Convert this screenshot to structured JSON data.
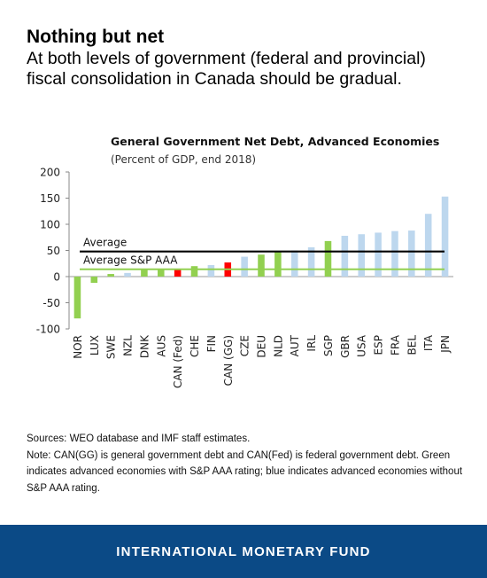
{
  "headline": {
    "title": "Nothing but net",
    "subtitle": "At both levels of government (federal and provincial) fiscal consolidation in Canada should be gradual."
  },
  "chart_data": {
    "type": "bar",
    "title": "General Government Net Debt, Advanced Economies",
    "subtitle": "(Percent of GDP, end 2018)",
    "categories": [
      "NOR",
      "LUX",
      "SWE",
      "NZL",
      "DNK",
      "AUS",
      "CAN (Fed)",
      "CHE",
      "FIN",
      "CAN (GG)",
      "CZE",
      "DEU",
      "NLD",
      "AUT",
      "IRL",
      "SGP",
      "GBR",
      "USA",
      "ESP",
      "FRA",
      "BEL",
      "ITA",
      "JPN"
    ],
    "values": [
      -80,
      -12,
      5,
      7,
      15,
      15,
      14,
      20,
      22,
      27,
      38,
      42,
      47,
      50,
      56,
      68,
      78,
      81,
      84,
      87,
      88,
      120,
      153
    ],
    "rating": [
      "aaa",
      "aaa",
      "aaa",
      "non",
      "aaa",
      "aaa",
      "can",
      "aaa",
      "non",
      "can",
      "non",
      "aaa",
      "aaa",
      "non",
      "non",
      "aaa",
      "non",
      "non",
      "non",
      "non",
      "non",
      "non",
      "non"
    ],
    "colors": {
      "aaa": "#92d050",
      "non": "#bdd7ee",
      "can": "#ff0000"
    },
    "ylim": [
      -100,
      200
    ],
    "yticks": [
      -100,
      -50,
      0,
      50,
      100,
      150,
      200
    ],
    "reference_lines": [
      {
        "label": "Average",
        "value": 48,
        "color": "#000000"
      },
      {
        "label": "Average S&P AAA",
        "value": 14,
        "color": "#92d050"
      }
    ],
    "grid": false
  },
  "notes": {
    "sources": "Sources: WEO database and IMF staff estimates.",
    "note": "Note: CAN(GG) is general government debt and CAN(Fed) is federal government debt. Green indicates advanced economies with S&P AAA rating; blue indicates advanced economies without S&P AAA rating."
  },
  "footer": {
    "label": "INTERNATIONAL MONETARY FUND"
  }
}
